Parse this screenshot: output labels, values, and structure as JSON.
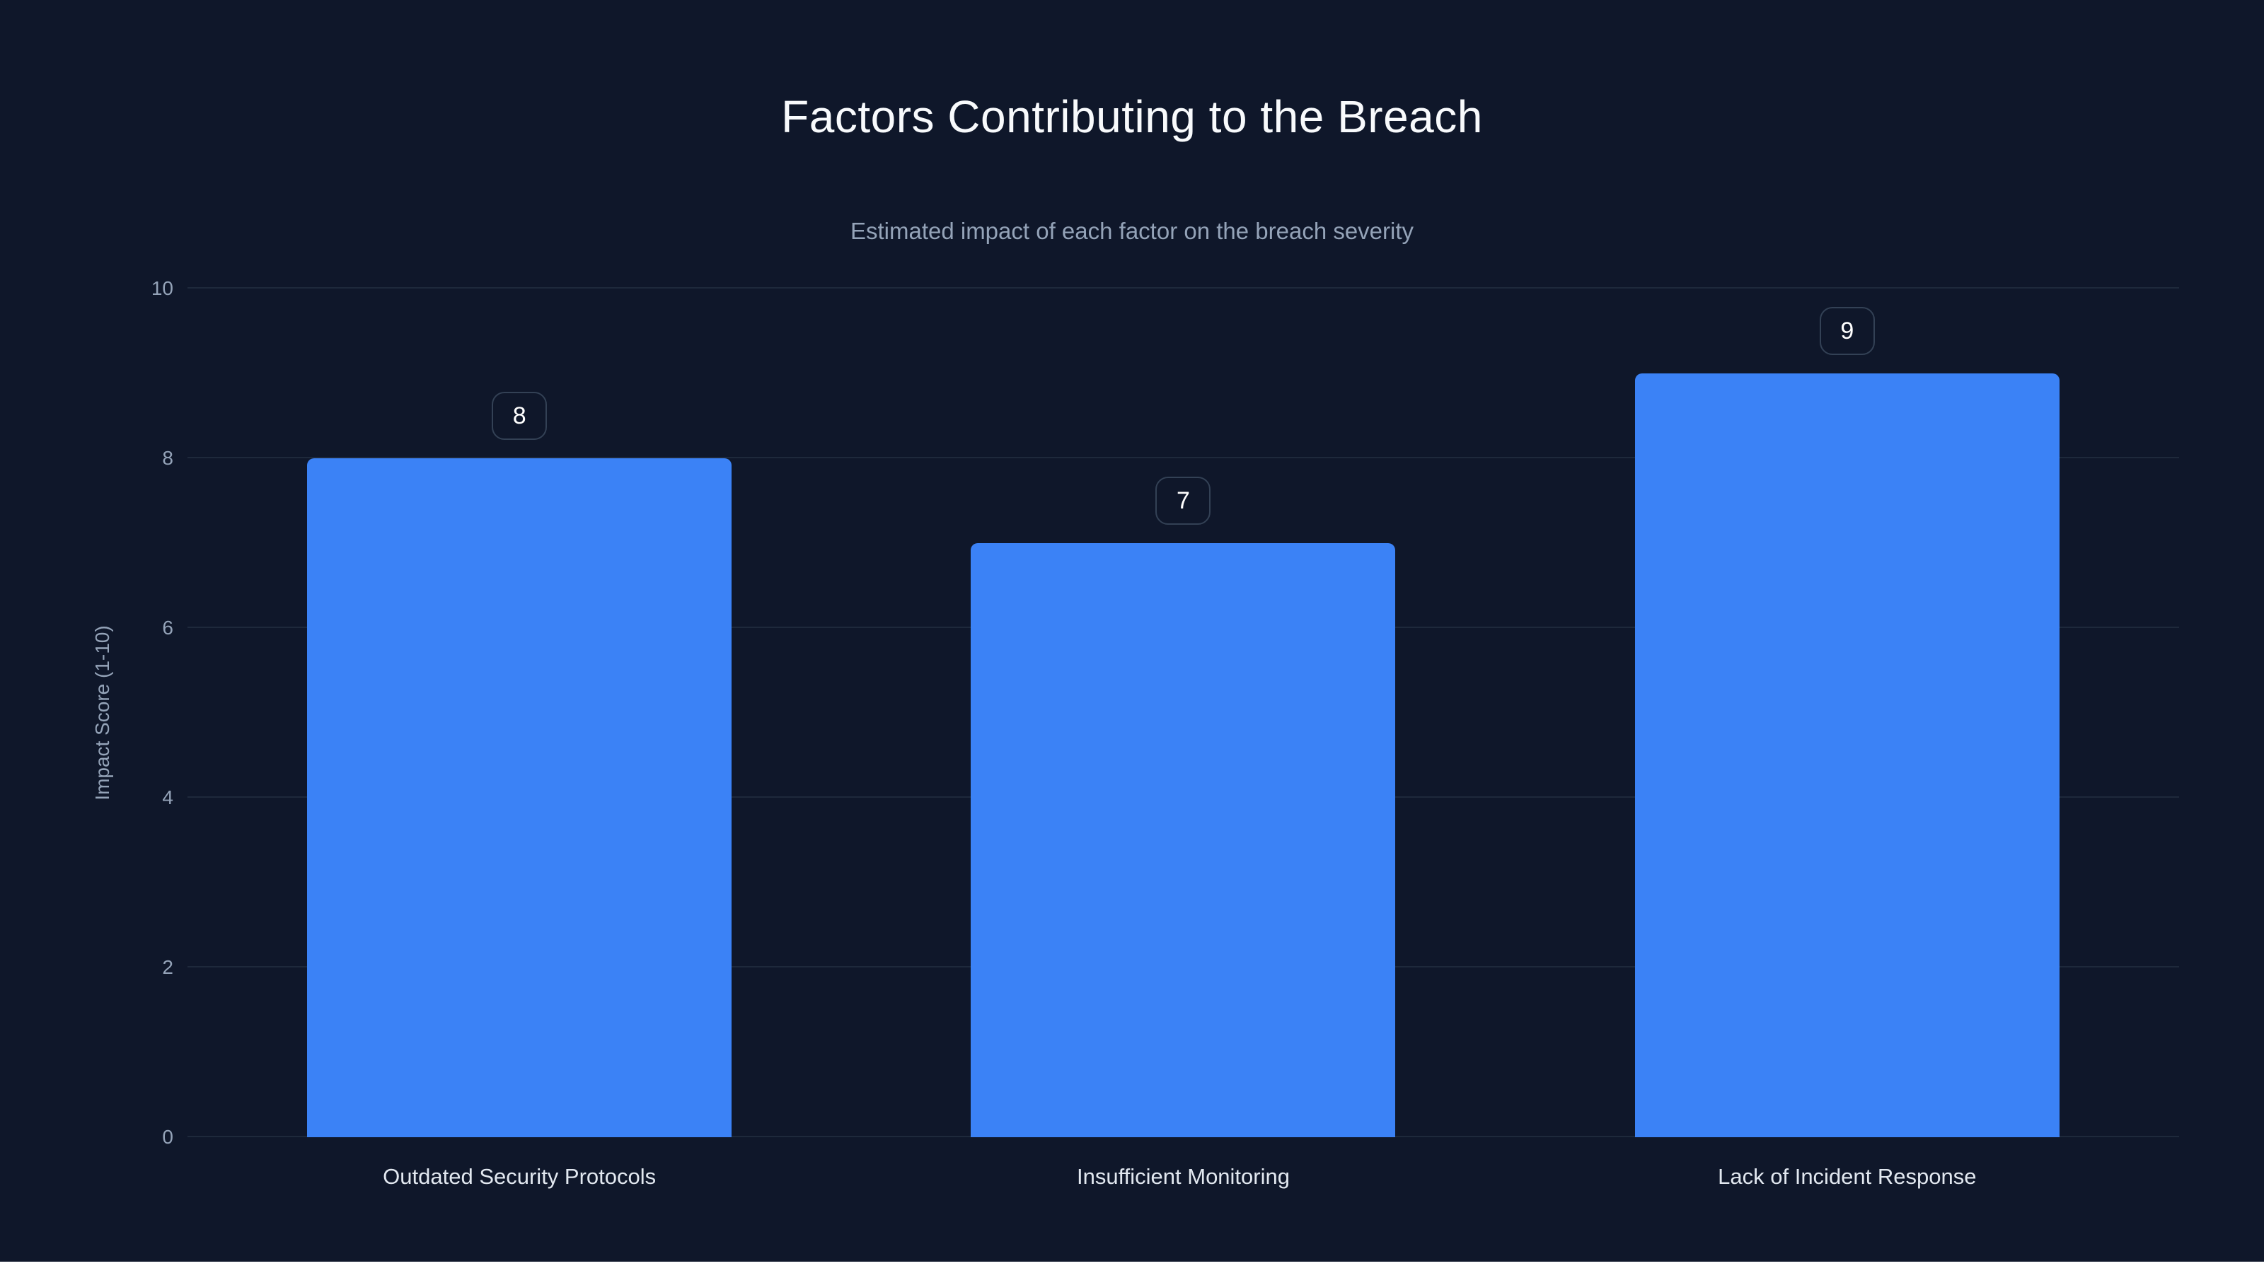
{
  "page": {
    "background": "#0f172a",
    "bottom_strip_color": "#ffffff"
  },
  "chart_data": {
    "type": "bar",
    "title": "Factors Contributing to the Breach",
    "subtitle": "Estimated impact of each factor on the breach severity",
    "categories": [
      "Outdated Security Protocols",
      "Insufficient Monitoring",
      "Lack of Incident Response"
    ],
    "values": [
      8,
      7,
      9
    ],
    "xlabel": "",
    "ylabel": "Impact Score (1-10)",
    "ylim": [
      0,
      10
    ],
    "yticks": [
      0,
      2,
      4,
      6,
      8,
      10
    ],
    "grid": true,
    "legend": false,
    "bar_color": "#3b82f6",
    "gridline_color": "#1e293b",
    "title_color": "#f8fafc",
    "subtitle_color": "#94a3b8",
    "tick_color": "#94a3b8",
    "category_label_color": "#e2e8f0",
    "badge_border_color": "#334155",
    "badge_text_color": "#ffffff"
  }
}
